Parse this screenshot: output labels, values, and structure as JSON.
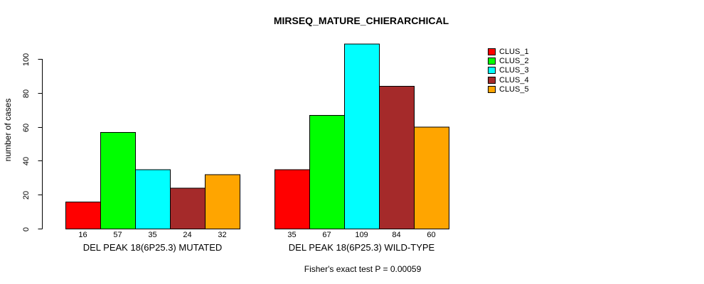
{
  "chart_data": {
    "type": "bar",
    "title": "MIRSEQ_MATURE_CHIERARCHICAL",
    "ylabel": "number of cases",
    "xlabel": "",
    "ylim": [
      0,
      110
    ],
    "yticks": [
      0,
      20,
      40,
      60,
      80,
      100
    ],
    "grid": false,
    "legend_position": "right",
    "background_color": "#FFFFFF",
    "axis_color": "#000000",
    "bar_border_color": "#000000",
    "categories": [
      "DEL PEAK 18(6P25.3) MUTATED",
      "DEL PEAK 18(6P25.3) WILD-TYPE"
    ],
    "series": [
      {
        "name": "CLUS_1",
        "color": "#FF0000",
        "values": [
          16,
          35
        ]
      },
      {
        "name": "CLUS_2",
        "color": "#00FF00",
        "values": [
          57,
          67
        ]
      },
      {
        "name": "CLUS_3",
        "color": "#00FFFF",
        "values": [
          35,
          109
        ]
      },
      {
        "name": "CLUS_4",
        "color": "#A52A2A",
        "values": [
          24,
          84
        ]
      },
      {
        "name": "CLUS_5",
        "color": "#FFA500",
        "values": [
          32,
          60
        ]
      }
    ],
    "bar_value_labels": [
      [
        16,
        57,
        35,
        24,
        32
      ],
      [
        35,
        67,
        109,
        84,
        60
      ]
    ],
    "annotation": "Fisher's exact test P = 0.00059"
  }
}
